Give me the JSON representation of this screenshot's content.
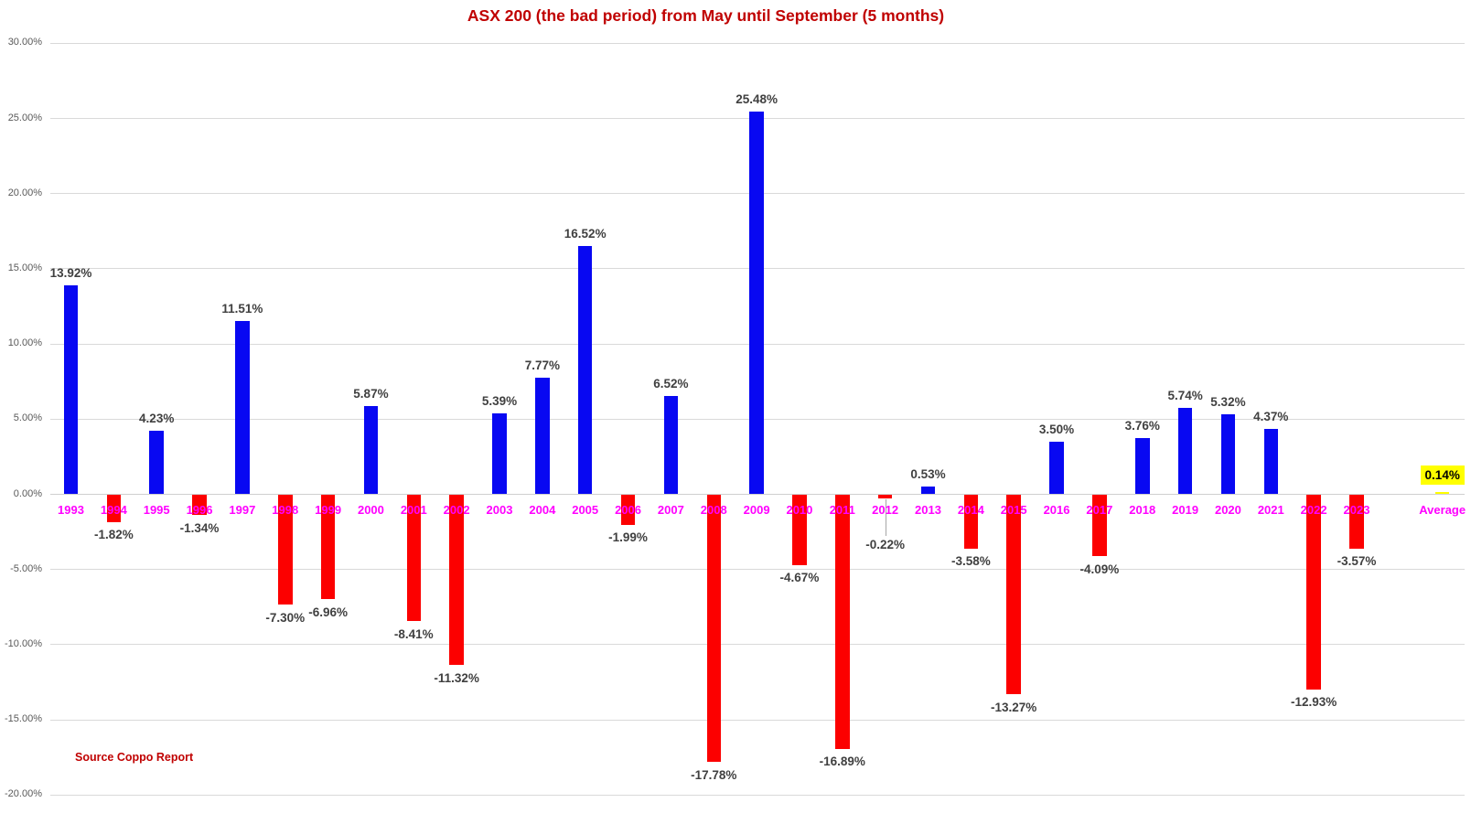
{
  "title": "ASX 200 (the bad period) from May until September (5 months)",
  "source_note": "Source Coppo Report",
  "colors": {
    "title_text": "#C00000",
    "source_text": "#C00000",
    "positive_bar": "#0808F2",
    "negative_bar": "#FC0000",
    "average_bar": "#FFFF00",
    "year_label": "#FF00FF",
    "value_label": "#404040",
    "axis_label": "#595959",
    "gridline": "#D9D9D9",
    "zero_line": "#CFCFCF",
    "leader_line": "#A6A6A6",
    "average_label_bg": "#FFFF00",
    "average_label_text": "#000000"
  },
  "chart_data": {
    "type": "bar",
    "title": "ASX 200 (the bad period) from May until September (5 months)",
    "xlabel": "",
    "ylabel": "",
    "unit": "%",
    "ylim": [
      -20,
      30
    ],
    "grid": true,
    "legend": "none",
    "y_ticks": [
      "30.00%",
      "25.00%",
      "20.00%",
      "15.00%",
      "10.00%",
      "5.00%",
      "0.00%",
      "-5.00%",
      "-10.00%",
      "-15.00%",
      "-20.00%"
    ],
    "categories": [
      "1993",
      "1994",
      "1995",
      "1996",
      "1997",
      "1998",
      "1999",
      "2000",
      "2001",
      "2002",
      "2003",
      "2004",
      "2005",
      "2006",
      "2007",
      "2008",
      "2009",
      "2010",
      "2011",
      "2012",
      "2013",
      "2014",
      "2015",
      "2016",
      "2017",
      "2018",
      "2019",
      "2020",
      "2021",
      "2022",
      "2023",
      "Average"
    ],
    "values": [
      13.92,
      -1.82,
      4.23,
      -1.34,
      11.51,
      -7.3,
      -6.96,
      5.87,
      -8.41,
      -11.32,
      5.39,
      7.77,
      16.52,
      -1.99,
      6.52,
      -17.78,
      25.48,
      -4.67,
      -16.89,
      -0.22,
      0.53,
      -3.58,
      -13.27,
      3.5,
      -4.09,
      3.76,
      5.74,
      5.32,
      4.37,
      -12.93,
      -3.57,
      0.14
    ],
    "value_labels": [
      "13.92%",
      "-1.82%",
      "4.23%",
      "-1.34%",
      "11.51%",
      "-7.30%",
      "-6.96%",
      "5.87%",
      "-8.41%",
      "-11.32%",
      "5.39%",
      "7.77%",
      "16.52%",
      "-1.99%",
      "6.52%",
      "-17.78%",
      "25.48%",
      "-4.67%",
      "-16.89%",
      "-0.22%",
      "0.53%",
      "-3.58%",
      "-13.27%",
      "3.50%",
      "-4.09%",
      "3.76%",
      "5.74%",
      "5.32%",
      "4.37%",
      "-12.93%",
      "-3.57%",
      "0.14%"
    ],
    "bar_color_rule": "blue when positive, red when negative, yellow highlighted bar for Average",
    "highlighted_category": "Average",
    "callout_categories": [
      "2012"
    ]
  }
}
